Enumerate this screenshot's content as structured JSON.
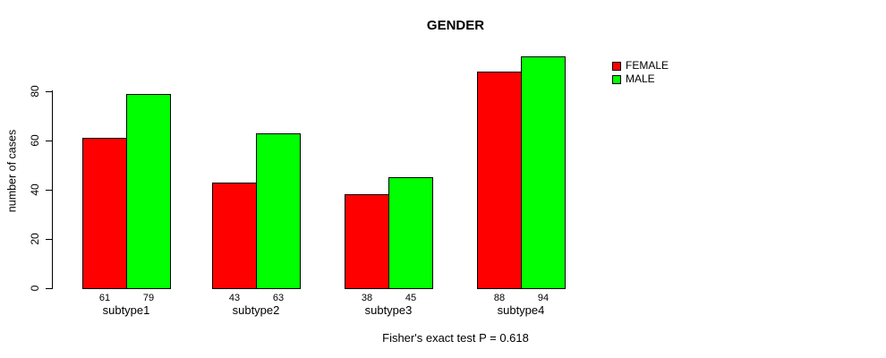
{
  "title": "GENDER",
  "y_axis": {
    "label": "number of cases"
  },
  "legend": [
    {
      "label": "FEMALE",
      "color": "#FF0000"
    },
    {
      "label": "MALE",
      "color": "#00FF00"
    }
  ],
  "caption": "Fisher's exact test P = 0.618",
  "colors": {
    "female": "#FF0000",
    "male": "#00FF00",
    "bar_border": "#000000"
  },
  "chart_data": {
    "type": "bar",
    "title": "GENDER",
    "xlabel": "",
    "ylabel": "number of cases",
    "categories": [
      "subtype1",
      "subtype2",
      "subtype3",
      "subtype4"
    ],
    "series": [
      {
        "name": "FEMALE",
        "color": "#FF0000",
        "values": [
          61,
          43,
          38,
          88
        ]
      },
      {
        "name": "MALE",
        "color": "#00FF00",
        "values": [
          79,
          63,
          45,
          94
        ]
      }
    ],
    "value_labels": true,
    "ylim": [
      0,
      94
    ],
    "yticks": [
      0,
      20,
      40,
      60,
      80
    ],
    "grid": false,
    "legend_position": "top-right",
    "annotations": [
      "Fisher's exact test P = 0.618"
    ]
  }
}
